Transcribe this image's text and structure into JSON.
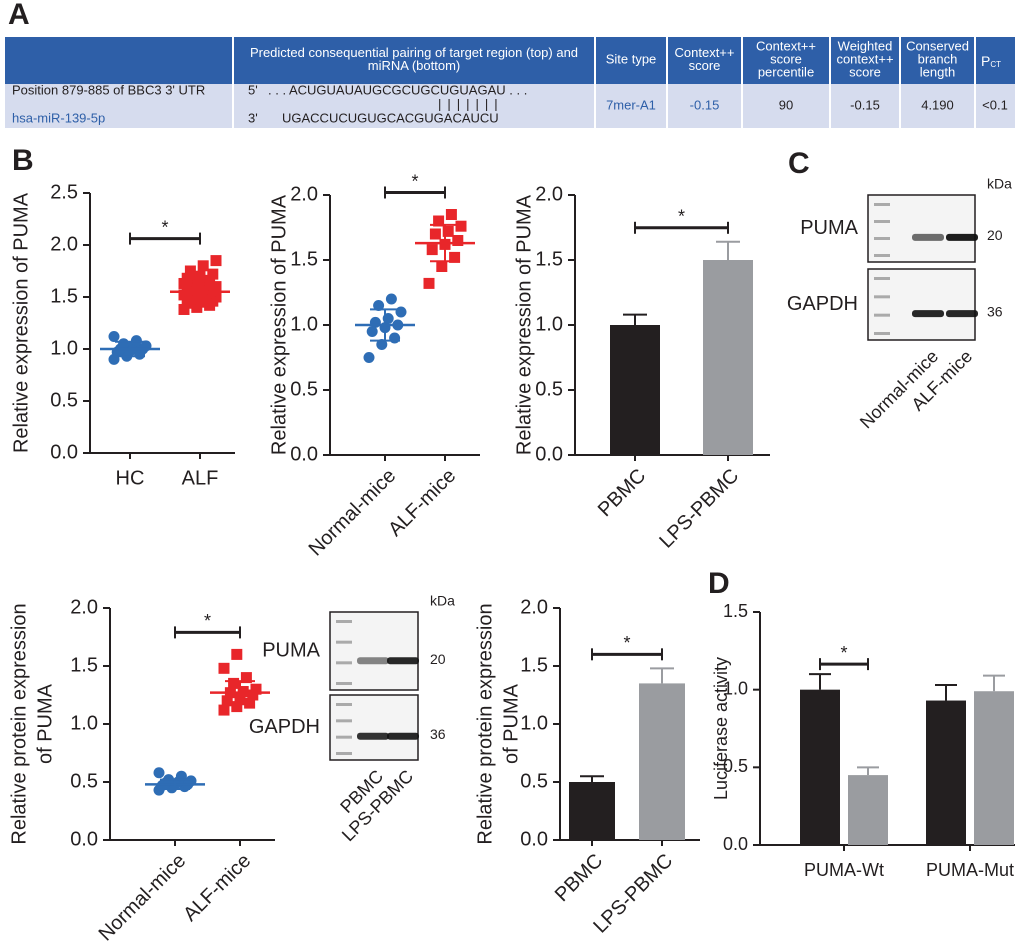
{
  "panels": [
    "A",
    "B",
    "C",
    "D"
  ],
  "table": {
    "header": [
      [
        "Predicted consequential pairing of target region (top) and",
        "miRNA (bottom)"
      ],
      [
        "Site type"
      ],
      [
        "Context++",
        "score"
      ],
      [
        "Context++",
        "score",
        "percentile"
      ],
      [
        "Weighted",
        "context++",
        "score"
      ],
      [
        "Conserved",
        "branch",
        "length"
      ],
      {
        "main": "P",
        "sub": "CT"
      }
    ],
    "row": {
      "site": [
        "Position 879-885 of BBC3  3' UTR",
        "hsa-miR-139-5p"
      ],
      "pairing": {
        "top_end": "5'",
        "top": ". . . ACUGUAUAUGCGCUGCUGUAGAU . . .",
        "match": "|||||||",
        "bottom_end": "3'",
        "bottom": "UGACCUCUGUGCACGUGACAUCU"
      },
      "values": [
        "7mer-A1",
        "-0.15",
        "90",
        "-0.15",
        "4.190",
        "<0.1"
      ]
    }
  },
  "blots": [
    {
      "rows": [
        "PUMA",
        "GAPDH"
      ],
      "unit": "kDa",
      "sizes": [
        20,
        36
      ],
      "lanes": [
        "Normal-mice",
        "ALF-mice"
      ]
    },
    {
      "rows": [
        "PUMA",
        "GAPDH"
      ],
      "unit": "kDa",
      "sizes": [
        20,
        36
      ],
      "lanes": [
        "PBMC",
        "LPS-PBMC"
      ]
    }
  ],
  "chart_data": [
    {
      "type": "dot",
      "ylabel": "Relative expression of PUMA",
      "categories": [
        "HC",
        "ALF"
      ],
      "colors": [
        "#2e6db5",
        "#e8262a"
      ],
      "points": [
        [
          0.9,
          0.93,
          0.95,
          0.97,
          0.98,
          1.0,
          1.0,
          1.02,
          1.03,
          1.05,
          1.08,
          1.12
        ],
        [
          1.38,
          1.4,
          1.42,
          1.44,
          1.45,
          1.46,
          1.48,
          1.49,
          1.5,
          1.5,
          1.51,
          1.52,
          1.53,
          1.54,
          1.55,
          1.55,
          1.56,
          1.57,
          1.58,
          1.6,
          1.61,
          1.62,
          1.63,
          1.65,
          1.66,
          1.68,
          1.7,
          1.72,
          1.75,
          1.8,
          1.85
        ]
      ],
      "means": [
        1.0,
        1.55
      ],
      "sd": [
        0.07,
        0.1
      ],
      "ylim": [
        0,
        2.5
      ],
      "yticks": [
        {
          "value": 0,
          "label": "0.0"
        },
        0.5,
        {
          "value": 1,
          "label": "1.0"
        },
        1.5,
        {
          "value": 2,
          "label": "2.0"
        },
        2.5
      ],
      "significance": "*"
    },
    {
      "type": "dot",
      "ylabel": "Relative expression of PUMA",
      "categories": [
        "Normal-mice",
        "ALF-mice"
      ],
      "colors": [
        "#2e6db5",
        "#e8262a"
      ],
      "points": [
        [
          0.75,
          0.85,
          0.9,
          0.95,
          0.98,
          1.0,
          1.02,
          1.05,
          1.1,
          1.15,
          1.2
        ],
        [
          1.32,
          1.45,
          1.52,
          1.58,
          1.62,
          1.65,
          1.7,
          1.72,
          1.76,
          1.8,
          1.85
        ]
      ],
      "means": [
        1.0,
        1.63
      ],
      "sd": [
        0.12,
        0.14
      ],
      "ylim": [
        0,
        2.0
      ],
      "yticks": [
        {
          "value": 0,
          "label": "0.0"
        },
        0.5,
        {
          "value": 1,
          "label": "1.0"
        },
        1.5,
        {
          "value": 2,
          "label": "2.0"
        }
      ],
      "significance": "*"
    },
    {
      "type": "bar",
      "ylabel": "Relative expression of PUMA",
      "categories": [
        "PBMC",
        "LPS-PBMC"
      ],
      "colors": [
        "#231f20",
        "#9a9ca0"
      ],
      "values": [
        1.0,
        1.5
      ],
      "errors": [
        0.08,
        0.14
      ],
      "ylim": [
        0,
        2.0
      ],
      "yticks": [
        {
          "value": 0,
          "label": "0.0"
        },
        0.5,
        {
          "value": 1,
          "label": "1.0"
        },
        1.5,
        {
          "value": 2,
          "label": "2.0"
        }
      ],
      "significance": "*"
    },
    {
      "type": "dot",
      "ylabel": [
        "Relative protein expression",
        "of PUMA"
      ],
      "categories": [
        "Normal-mice",
        "ALF-mice"
      ],
      "colors": [
        "#2e6db5",
        "#e8262a"
      ],
      "points": [
        [
          0.43,
          0.45,
          0.46,
          0.47,
          0.48,
          0.48,
          0.49,
          0.5,
          0.51,
          0.52,
          0.55,
          0.58
        ],
        [
          1.12,
          1.15,
          1.18,
          1.2,
          1.22,
          1.25,
          1.27,
          1.28,
          1.3,
          1.35,
          1.4,
          1.48,
          1.6
        ]
      ],
      "means": [
        0.48,
        1.27
      ],
      "sd": [
        0.04,
        0.1
      ],
      "ylim": [
        0,
        2.0
      ],
      "yticks": [
        {
          "value": 0,
          "label": "0.0"
        },
        0.5,
        {
          "value": 1,
          "label": "1.0"
        },
        1.5,
        {
          "value": 2,
          "label": "2.0"
        }
      ],
      "significance": "*"
    },
    {
      "type": "bar",
      "ylabel": [
        "Relative protein expression",
        "of PUMA"
      ],
      "categories": [
        "PBMC",
        "LPS-PBMC"
      ],
      "colors": [
        "#231f20",
        "#9a9ca0"
      ],
      "values": [
        0.5,
        1.35
      ],
      "errors": [
        0.05,
        0.13
      ],
      "ylim": [
        0,
        2.0
      ],
      "yticks": [
        {
          "value": 0,
          "label": "0.0"
        },
        0.5,
        {
          "value": 1,
          "label": "1.0"
        },
        1.5,
        {
          "value": 2,
          "label": "2.0"
        }
      ],
      "significance": "*"
    },
    {
      "type": "grouped_bar",
      "ylabel": "Luciferase activity",
      "categories": [
        "PUMA-Wt",
        "PUMA-Mut"
      ],
      "series": [
        {
          "color": "#231f20",
          "values": [
            1.0,
            0.93
          ],
          "errors": [
            0.1,
            0.1
          ]
        },
        {
          "color": "#9a9ca0",
          "values": [
            0.45,
            0.99
          ],
          "errors": [
            0.05,
            0.1
          ]
        }
      ],
      "ylim": [
        0,
        1.5
      ],
      "yticks": [
        {
          "value": 0,
          "label": "0.0"
        },
        0.5,
        {
          "value": 1,
          "label": "1.0"
        },
        1.5
      ],
      "significance": "*"
    }
  ]
}
